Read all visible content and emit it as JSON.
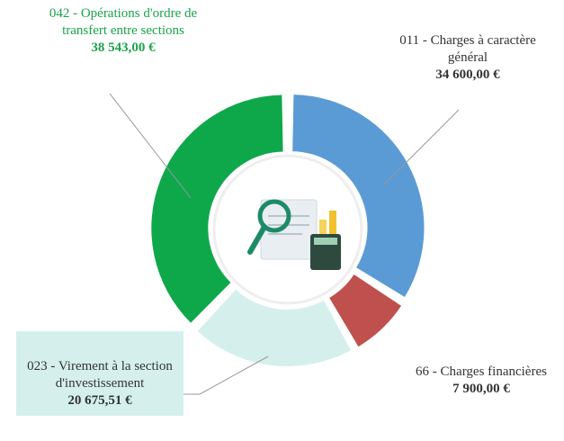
{
  "chart_data": {
    "type": "donut",
    "categories": [
      "011 - Charges à caractère général",
      "66 - Charges financières",
      "023 - Virement à la section d'investissement",
      "042 - Opérations d'ordre de transfert entre sections"
    ],
    "values": [
      34600,
      7900,
      20675.51,
      38543
    ],
    "value_labels": [
      "34 600,00 €",
      "7 900,00 €",
      "20 675,51 €",
      "38 543,00 €"
    ],
    "colors": [
      "#5b9bd5",
      "#c0504d",
      "#d5f0ec",
      "#0ea84b"
    ]
  }
}
